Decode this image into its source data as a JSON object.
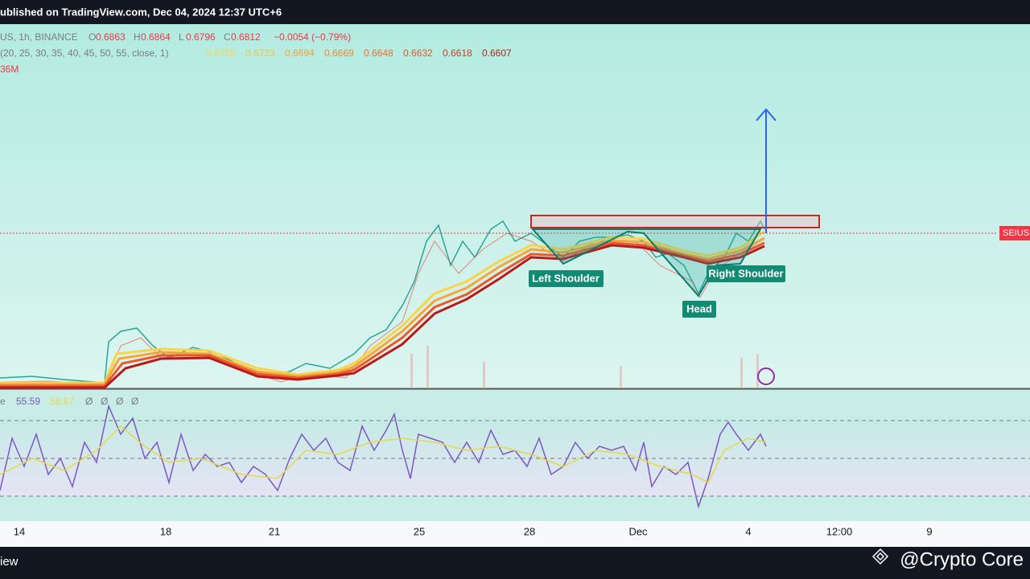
{
  "header": {
    "title": "ublished on TradingView.com, Dec 04, 2024 12:37 UTC+6"
  },
  "legend": {
    "symbol": "US, 1h, BINANCE",
    "ohlc": [
      {
        "label": "O",
        "value": "0.6863"
      },
      {
        "label": "H",
        "value": "0.6864"
      },
      {
        "label": "L",
        "value": "0.6796"
      },
      {
        "label": "C",
        "value": "0.6812"
      }
    ],
    "change": "−0.0054 (−0.79%)",
    "ribbon_params": "(20, 25, 30, 35, 40, 45, 50, 55, close, 1)",
    "ribbon_values": [
      "0.6758",
      "0.6723",
      "0.6694",
      "0.6669",
      "0.6648",
      "0.6632",
      "0.6618",
      "0.6607"
    ],
    "volume": "36M"
  },
  "price_tag": "SEIUS",
  "annotations": [
    "Left Shoulder",
    "Head",
    "Right Shoulder"
  ],
  "rsi": {
    "label": "e",
    "value": "55.59",
    "ma": "58.87",
    "extras": [
      "Ø",
      "Ø",
      "Ø",
      "Ø"
    ]
  },
  "time_axis": [
    "14",
    "18",
    "21",
    "25",
    "28",
    "Dec",
    "4",
    "12:00",
    "9"
  ],
  "footer": {
    "left": "iew",
    "brand": "@Crypto Core"
  }
}
